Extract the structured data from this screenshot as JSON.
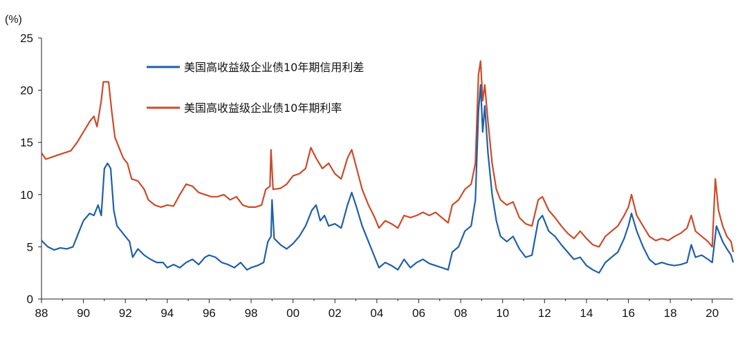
{
  "chart_data": {
    "type": "line",
    "title": "",
    "ylabel_unit": "(%)",
    "xlabel": "",
    "ylim": [
      0,
      25
    ],
    "y_ticks": [
      "0",
      "5",
      "10",
      "15",
      "20",
      "25"
    ],
    "x_ticks": [
      "88",
      "90",
      "92",
      "94",
      "96",
      "98",
      "00",
      "02",
      "04",
      "06",
      "08",
      "10",
      "12",
      "14",
      "16",
      "18",
      "20"
    ],
    "xlim": [
      1988.0,
      2021.0
    ],
    "grid": false,
    "legend_position": "top-left",
    "series": [
      {
        "name": "美国高收益级企业债10年期信用利差",
        "color": "#1f5fa8",
        "points": [
          [
            1988.0,
            5.6
          ],
          [
            1988.3,
            5.0
          ],
          [
            1988.6,
            4.7
          ],
          [
            1988.9,
            4.9
          ],
          [
            1989.2,
            4.8
          ],
          [
            1989.5,
            5.0
          ],
          [
            1989.8,
            6.5
          ],
          [
            1990.0,
            7.5
          ],
          [
            1990.3,
            8.2
          ],
          [
            1990.5,
            8.0
          ],
          [
            1990.7,
            9.0
          ],
          [
            1990.85,
            8.0
          ],
          [
            1991.0,
            12.5
          ],
          [
            1991.15,
            13.0
          ],
          [
            1991.3,
            12.5
          ],
          [
            1991.45,
            8.5
          ],
          [
            1991.6,
            7.0
          ],
          [
            1991.8,
            6.5
          ],
          [
            1992.0,
            6.0
          ],
          [
            1992.2,
            5.5
          ],
          [
            1992.35,
            4.0
          ],
          [
            1992.6,
            4.8
          ],
          [
            1992.9,
            4.2
          ],
          [
            1993.2,
            3.8
          ],
          [
            1993.5,
            3.5
          ],
          [
            1993.8,
            3.5
          ],
          [
            1994.0,
            3.0
          ],
          [
            1994.3,
            3.3
          ],
          [
            1994.6,
            3.0
          ],
          [
            1994.9,
            3.5
          ],
          [
            1995.2,
            3.8
          ],
          [
            1995.5,
            3.3
          ],
          [
            1995.8,
            4.0
          ],
          [
            1996.0,
            4.2
          ],
          [
            1996.3,
            4.0
          ],
          [
            1996.6,
            3.5
          ],
          [
            1996.9,
            3.3
          ],
          [
            1997.2,
            3.0
          ],
          [
            1997.5,
            3.5
          ],
          [
            1997.8,
            2.8
          ],
          [
            1998.0,
            3.0
          ],
          [
            1998.3,
            3.2
          ],
          [
            1998.6,
            3.5
          ],
          [
            1998.8,
            5.5
          ],
          [
            1998.95,
            6.0
          ],
          [
            1999.0,
            9.5
          ],
          [
            1999.1,
            5.8
          ],
          [
            1999.4,
            5.2
          ],
          [
            1999.7,
            4.8
          ],
          [
            2000.0,
            5.3
          ],
          [
            2000.3,
            6.0
          ],
          [
            2000.6,
            7.0
          ],
          [
            2000.9,
            8.5
          ],
          [
            2001.1,
            9.0
          ],
          [
            2001.3,
            7.5
          ],
          [
            2001.5,
            8.0
          ],
          [
            2001.7,
            7.0
          ],
          [
            2002.0,
            7.2
          ],
          [
            2002.3,
            6.8
          ],
          [
            2002.6,
            9.0
          ],
          [
            2002.8,
            10.2
          ],
          [
            2003.0,
            9.0
          ],
          [
            2003.3,
            7.0
          ],
          [
            2003.6,
            5.5
          ],
          [
            2003.9,
            4.0
          ],
          [
            2004.1,
            3.0
          ],
          [
            2004.4,
            3.5
          ],
          [
            2004.7,
            3.2
          ],
          [
            2005.0,
            2.8
          ],
          [
            2005.3,
            3.8
          ],
          [
            2005.6,
            3.0
          ],
          [
            2005.9,
            3.5
          ],
          [
            2006.2,
            3.8
          ],
          [
            2006.5,
            3.4
          ],
          [
            2006.8,
            3.2
          ],
          [
            2007.1,
            3.0
          ],
          [
            2007.4,
            2.8
          ],
          [
            2007.6,
            4.5
          ],
          [
            2007.9,
            5.0
          ],
          [
            2008.2,
            6.5
          ],
          [
            2008.5,
            7.0
          ],
          [
            2008.7,
            9.5
          ],
          [
            2008.85,
            18.0
          ],
          [
            2008.95,
            20.5
          ],
          [
            2009.05,
            16.0
          ],
          [
            2009.15,
            18.5
          ],
          [
            2009.3,
            14.0
          ],
          [
            2009.5,
            10.0
          ],
          [
            2009.7,
            7.5
          ],
          [
            2009.9,
            6.0
          ],
          [
            2010.2,
            5.5
          ],
          [
            2010.5,
            6.0
          ],
          [
            2010.8,
            4.8
          ],
          [
            2011.1,
            4.0
          ],
          [
            2011.4,
            4.2
          ],
          [
            2011.7,
            7.5
          ],
          [
            2011.9,
            8.0
          ],
          [
            2012.2,
            6.5
          ],
          [
            2012.5,
            6.0
          ],
          [
            2012.8,
            5.2
          ],
          [
            2013.1,
            4.5
          ],
          [
            2013.4,
            3.8
          ],
          [
            2013.7,
            4.0
          ],
          [
            2014.0,
            3.2
          ],
          [
            2014.3,
            2.8
          ],
          [
            2014.6,
            2.5
          ],
          [
            2014.9,
            3.5
          ],
          [
            2015.2,
            4.0
          ],
          [
            2015.5,
            4.5
          ],
          [
            2015.8,
            5.8
          ],
          [
            2016.0,
            7.0
          ],
          [
            2016.15,
            8.2
          ],
          [
            2016.4,
            6.5
          ],
          [
            2016.7,
            5.0
          ],
          [
            2017.0,
            3.8
          ],
          [
            2017.3,
            3.3
          ],
          [
            2017.6,
            3.5
          ],
          [
            2017.9,
            3.3
          ],
          [
            2018.2,
            3.2
          ],
          [
            2018.5,
            3.3
          ],
          [
            2018.8,
            3.5
          ],
          [
            2019.0,
            5.2
          ],
          [
            2019.2,
            4.0
          ],
          [
            2019.5,
            4.2
          ],
          [
            2019.8,
            3.8
          ],
          [
            2020.0,
            3.5
          ],
          [
            2020.2,
            7.0
          ],
          [
            2020.3,
            6.5
          ],
          [
            2020.5,
            5.5
          ],
          [
            2020.7,
            4.8
          ],
          [
            2020.9,
            4.2
          ],
          [
            2021.0,
            3.5
          ]
        ]
      },
      {
        "name": "美国高收益级企业债10年期利率",
        "color": "#cc4a28",
        "points": [
          [
            1988.0,
            14.0
          ],
          [
            1988.2,
            13.4
          ],
          [
            1988.5,
            13.6
          ],
          [
            1988.8,
            13.8
          ],
          [
            1989.1,
            14.0
          ],
          [
            1989.4,
            14.2
          ],
          [
            1989.7,
            15.0
          ],
          [
            1990.0,
            16.0
          ],
          [
            1990.3,
            17.0
          ],
          [
            1990.5,
            17.5
          ],
          [
            1990.65,
            16.5
          ],
          [
            1990.85,
            19.0
          ],
          [
            1990.95,
            20.8
          ],
          [
            1991.2,
            20.8
          ],
          [
            1991.35,
            18.0
          ],
          [
            1991.5,
            15.5
          ],
          [
            1991.7,
            14.5
          ],
          [
            1991.9,
            13.5
          ],
          [
            1992.1,
            13.0
          ],
          [
            1992.3,
            11.5
          ],
          [
            1992.6,
            11.3
          ],
          [
            1992.9,
            10.5
          ],
          [
            1993.1,
            9.5
          ],
          [
            1993.4,
            9.0
          ],
          [
            1993.7,
            8.8
          ],
          [
            1994.0,
            9.0
          ],
          [
            1994.3,
            8.9
          ],
          [
            1994.6,
            10.0
          ],
          [
            1994.9,
            11.0
          ],
          [
            1995.2,
            10.8
          ],
          [
            1995.5,
            10.2
          ],
          [
            1995.8,
            10.0
          ],
          [
            1996.1,
            9.8
          ],
          [
            1996.4,
            9.8
          ],
          [
            1996.7,
            10.0
          ],
          [
            1997.0,
            9.5
          ],
          [
            1997.3,
            9.8
          ],
          [
            1997.6,
            9.0
          ],
          [
            1997.9,
            8.8
          ],
          [
            1998.2,
            8.8
          ],
          [
            1998.5,
            9.0
          ],
          [
            1998.7,
            10.5
          ],
          [
            1998.9,
            10.8
          ],
          [
            1998.95,
            14.3
          ],
          [
            1999.05,
            10.5
          ],
          [
            1999.4,
            10.6
          ],
          [
            1999.7,
            11.0
          ],
          [
            2000.0,
            11.8
          ],
          [
            2000.3,
            12.0
          ],
          [
            2000.6,
            12.5
          ],
          [
            2000.85,
            14.5
          ],
          [
            2001.1,
            13.5
          ],
          [
            2001.4,
            12.5
          ],
          [
            2001.7,
            13.0
          ],
          [
            2002.0,
            12.0
          ],
          [
            2002.3,
            11.5
          ],
          [
            2002.6,
            13.5
          ],
          [
            2002.8,
            14.3
          ],
          [
            2003.0,
            12.8
          ],
          [
            2003.3,
            10.5
          ],
          [
            2003.6,
            9.0
          ],
          [
            2003.9,
            7.8
          ],
          [
            2004.1,
            6.8
          ],
          [
            2004.4,
            7.5
          ],
          [
            2004.7,
            7.2
          ],
          [
            2005.0,
            6.8
          ],
          [
            2005.3,
            8.0
          ],
          [
            2005.6,
            7.8
          ],
          [
            2005.9,
            8.0
          ],
          [
            2006.2,
            8.3
          ],
          [
            2006.5,
            8.0
          ],
          [
            2006.8,
            8.3
          ],
          [
            2007.1,
            7.8
          ],
          [
            2007.4,
            7.3
          ],
          [
            2007.6,
            9.0
          ],
          [
            2007.9,
            9.5
          ],
          [
            2008.2,
            10.5
          ],
          [
            2008.5,
            11.0
          ],
          [
            2008.7,
            13.0
          ],
          [
            2008.85,
            21.5
          ],
          [
            2008.95,
            22.8
          ],
          [
            2009.05,
            19.0
          ],
          [
            2009.15,
            20.5
          ],
          [
            2009.3,
            17.0
          ],
          [
            2009.5,
            13.0
          ],
          [
            2009.7,
            10.5
          ],
          [
            2009.9,
            9.5
          ],
          [
            2010.2,
            9.0
          ],
          [
            2010.5,
            9.3
          ],
          [
            2010.8,
            7.8
          ],
          [
            2011.1,
            7.2
          ],
          [
            2011.4,
            7.0
          ],
          [
            2011.7,
            9.5
          ],
          [
            2011.9,
            9.8
          ],
          [
            2012.2,
            8.5
          ],
          [
            2012.5,
            7.8
          ],
          [
            2012.8,
            7.0
          ],
          [
            2013.1,
            6.3
          ],
          [
            2013.4,
            5.8
          ],
          [
            2013.7,
            6.5
          ],
          [
            2014.0,
            5.8
          ],
          [
            2014.3,
            5.2
          ],
          [
            2014.6,
            5.0
          ],
          [
            2014.9,
            6.0
          ],
          [
            2015.2,
            6.5
          ],
          [
            2015.5,
            7.0
          ],
          [
            2015.8,
            8.0
          ],
          [
            2016.0,
            8.8
          ],
          [
            2016.15,
            10.0
          ],
          [
            2016.4,
            8.0
          ],
          [
            2016.7,
            7.0
          ],
          [
            2017.0,
            6.0
          ],
          [
            2017.3,
            5.6
          ],
          [
            2017.6,
            5.8
          ],
          [
            2017.9,
            5.6
          ],
          [
            2018.2,
            6.0
          ],
          [
            2018.5,
            6.3
          ],
          [
            2018.8,
            6.8
          ],
          [
            2019.0,
            8.0
          ],
          [
            2019.2,
            6.5
          ],
          [
            2019.5,
            6.0
          ],
          [
            2019.8,
            5.5
          ],
          [
            2020.0,
            5.0
          ],
          [
            2020.15,
            11.5
          ],
          [
            2020.3,
            8.5
          ],
          [
            2020.5,
            7.0
          ],
          [
            2020.7,
            6.0
          ],
          [
            2020.9,
            5.5
          ],
          [
            2021.0,
            4.5
          ]
        ]
      }
    ]
  }
}
